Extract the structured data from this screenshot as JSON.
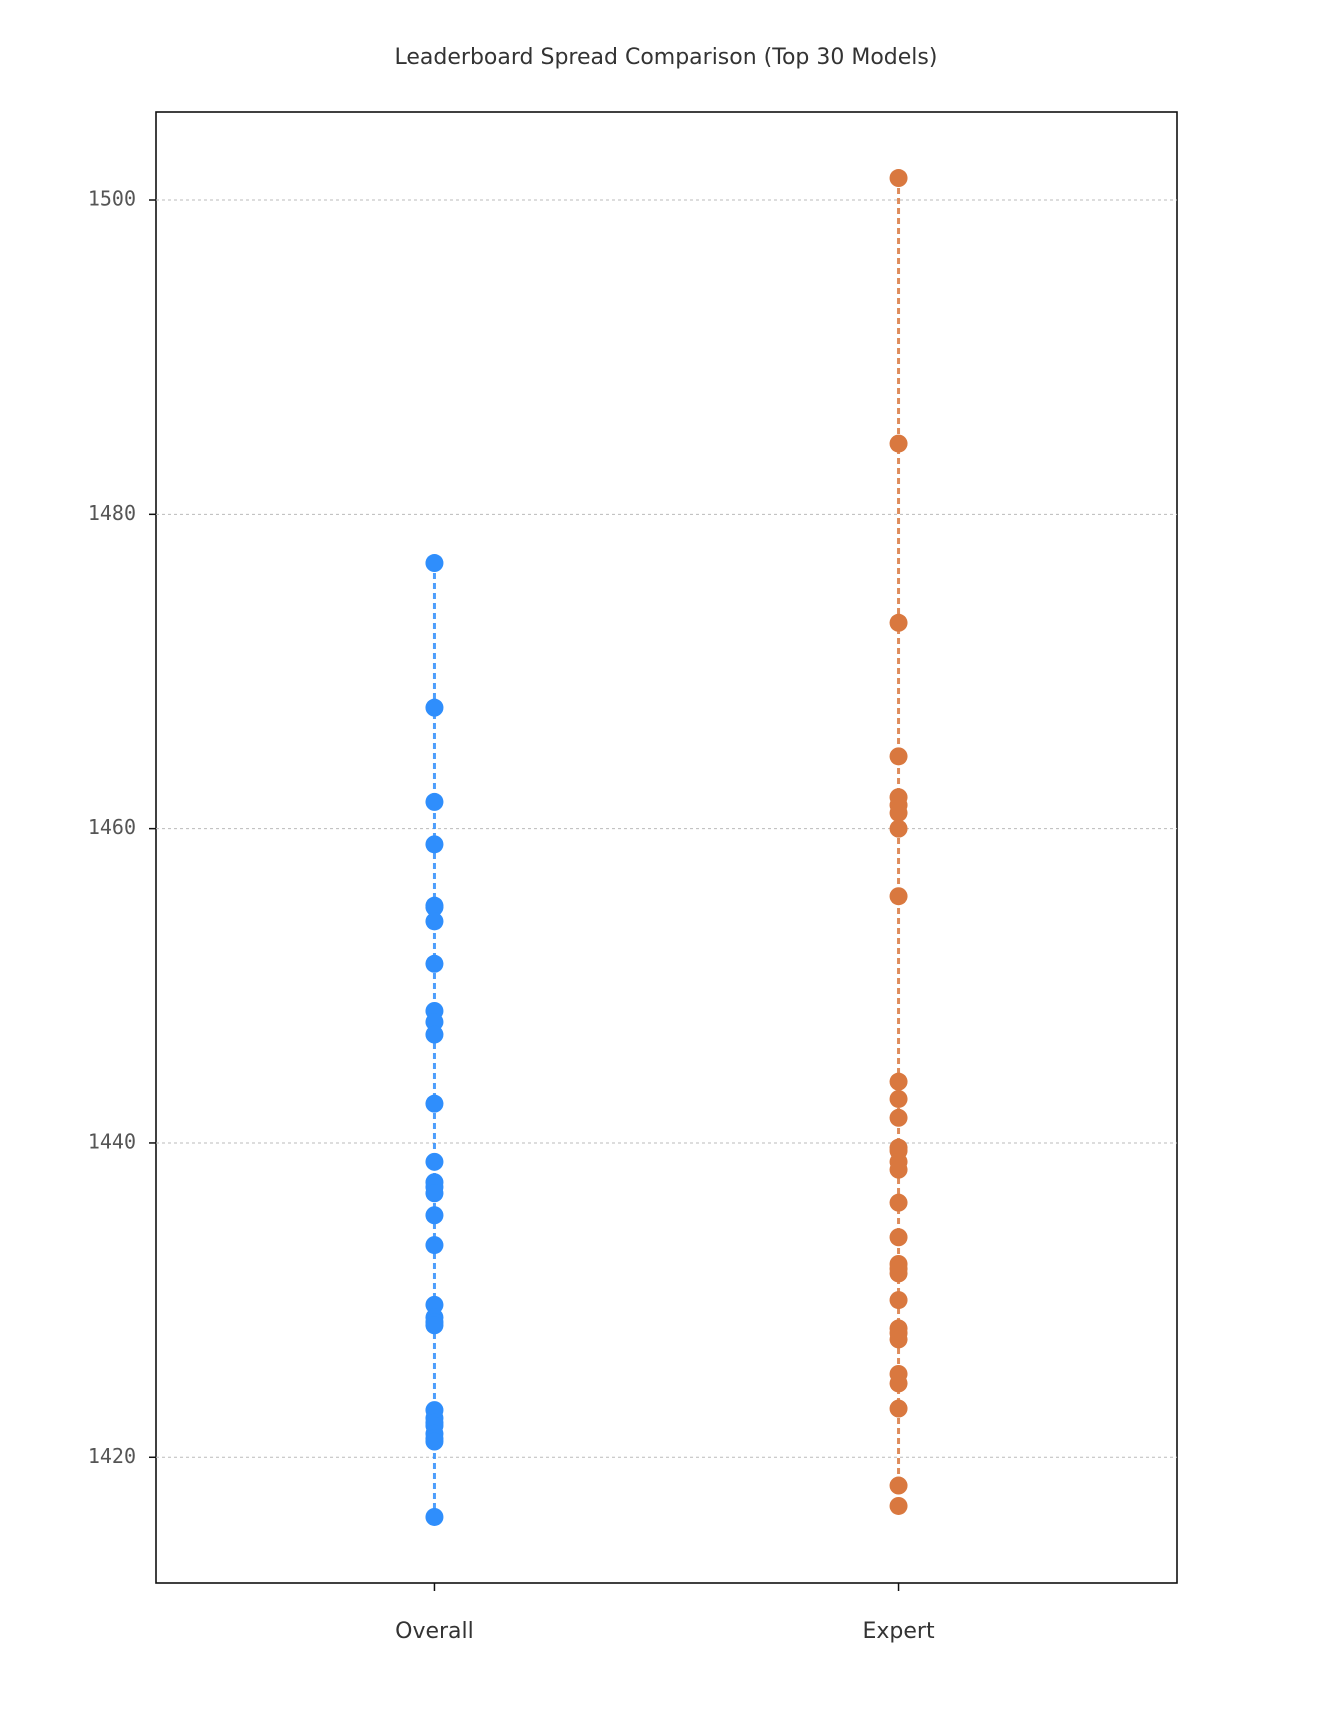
{
  "chart_data": {
    "type": "strip",
    "title": "Leaderboard Spread Comparison (Top 30 Models)",
    "categories": [
      "Overall",
      "Expert"
    ],
    "series": [
      {
        "color": "#2f8efc",
        "values": [
          1476.9,
          1467.7,
          1461.7,
          1459.0,
          1455.1,
          1455.0,
          1454.1,
          1451.4,
          1448.4,
          1447.7,
          1446.9,
          1442.5,
          1438.8,
          1437.5,
          1437.2,
          1436.8,
          1435.4,
          1433.5,
          1429.7,
          1428.9,
          1428.6,
          1428.4,
          1423.0,
          1422.5,
          1422.2,
          1422.0,
          1421.5,
          1421.2,
          1421.0,
          1416.2
        ]
      },
      {
        "color": "#d9783f",
        "values": [
          1501.4,
          1484.5,
          1473.1,
          1464.6,
          1462.0,
          1461.5,
          1461.0,
          1460.0,
          1455.7,
          1443.9,
          1442.8,
          1441.6,
          1439.7,
          1439.5,
          1438.8,
          1438.3,
          1436.2,
          1434.0,
          1432.3,
          1432.0,
          1431.7,
          1430.0,
          1428.2,
          1427.9,
          1427.5,
          1425.3,
          1424.7,
          1423.1,
          1418.2,
          1416.9
        ]
      }
    ],
    "ylim": [
      1412.0,
      1505.6
    ],
    "yticks": [
      1420,
      1440,
      1460,
      1480,
      1500
    ],
    "grid": true
  }
}
